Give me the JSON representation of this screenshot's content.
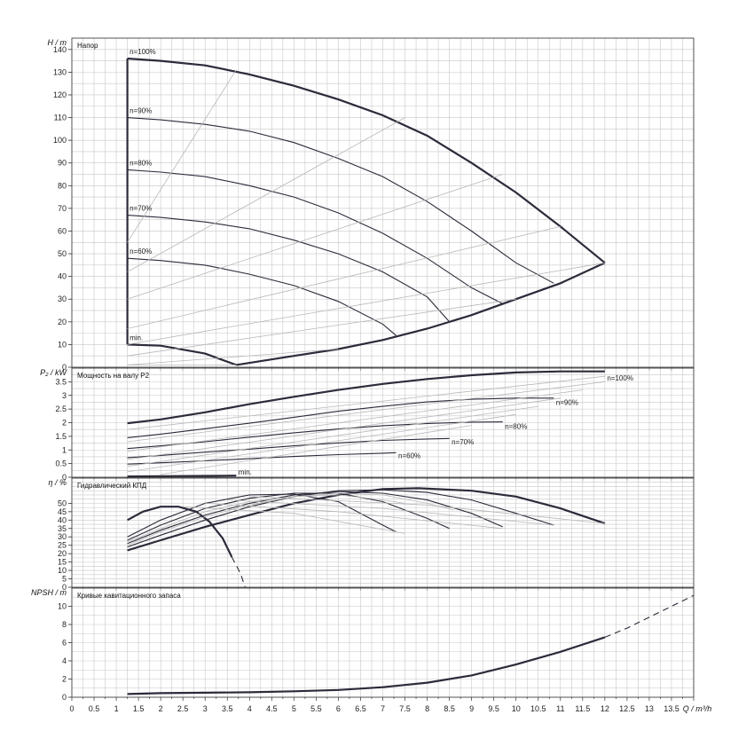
{
  "chart_data": [
    {
      "type": "line",
      "title": "Напор",
      "ylabel": "H / m",
      "xlim": [
        0,
        14
      ],
      "ylim": [
        0,
        145
      ],
      "yticks": [
        0,
        10,
        20,
        30,
        40,
        50,
        60,
        70,
        80,
        90,
        100,
        110,
        120,
        130,
        140
      ],
      "series": [
        {
          "name": "n=100%",
          "style": "main",
          "x": [
            1.25,
            2,
            3,
            4,
            5,
            6,
            7,
            8,
            9,
            10,
            11,
            12
          ],
          "y": [
            136,
            135,
            133,
            129,
            124,
            118,
            111,
            102,
            90,
            77,
            62,
            46
          ]
        },
        {
          "name": "n=90%",
          "style": "mid",
          "x": [
            1.25,
            2,
            3,
            4,
            5,
            6,
            7,
            8,
            9,
            10,
            10.85
          ],
          "y": [
            110,
            109,
            107,
            104,
            99,
            92,
            84,
            73,
            60,
            46,
            37
          ]
        },
        {
          "name": "n=80%",
          "style": "mid",
          "x": [
            1.25,
            2,
            3,
            4,
            5,
            6,
            7,
            8,
            9,
            9.7
          ],
          "y": [
            87,
            86,
            84,
            80,
            75,
            68,
            59,
            48,
            35,
            28
          ]
        },
        {
          "name": "n=70%",
          "style": "mid",
          "x": [
            1.25,
            2,
            3,
            4,
            5,
            6,
            7,
            8,
            8.5
          ],
          "y": [
            67,
            66,
            64,
            61,
            56,
            50,
            42,
            31,
            20
          ]
        },
        {
          "name": "n=60%",
          "style": "mid",
          "x": [
            1.25,
            2,
            3,
            4,
            5,
            6,
            7,
            7.3
          ],
          "y": [
            48,
            47,
            45,
            41,
            36,
            29,
            19,
            14
          ]
        },
        {
          "name": "min.",
          "style": "main",
          "x": [
            1.25,
            2,
            3,
            3.7
          ],
          "y": [
            10,
            9.5,
            6,
            1
          ]
        },
        {
          "name": "",
          "style": "main",
          "x": [
            3.7,
            5,
            6,
            7,
            8,
            9,
            10,
            11,
            12
          ],
          "y": [
            1,
            5,
            8,
            12,
            17,
            23,
            30,
            37,
            46
          ]
        },
        {
          "name": "",
          "style": "main",
          "x": [
            1.25,
            1.25
          ],
          "y": [
            10,
            136
          ]
        },
        {
          "name": "",
          "style": "thin",
          "x": [
            1.25,
            3.7
          ],
          "y": [
            55,
            131
          ]
        },
        {
          "name": "",
          "style": "thin",
          "x": [
            1.25,
            7.5
          ],
          "y": [
            42,
            110
          ]
        },
        {
          "name": "",
          "style": "thin",
          "x": [
            1.25,
            9.7
          ],
          "y": [
            30,
            85
          ]
        },
        {
          "name": "",
          "style": "thin",
          "x": [
            1.25,
            11
          ],
          "y": [
            17,
            62
          ]
        },
        {
          "name": "",
          "style": "thin",
          "x": [
            1.25,
            12
          ],
          "y": [
            10,
            46
          ]
        },
        {
          "name": "",
          "style": "thin",
          "x": [
            1.25,
            10
          ],
          "y": [
            5,
            30
          ]
        },
        {
          "name": "",
          "style": "thin",
          "x": [
            1.25,
            6
          ],
          "y": [
            1,
            8
          ]
        },
        {
          "name": "",
          "style": "thin",
          "x": [
            1.25,
            3.7
          ],
          "y": [
            1,
            1
          ]
        }
      ]
    },
    {
      "type": "line",
      "title": "Мощность на валу P2",
      "ylabel": "P₂ / kW",
      "xlim": [
        0,
        14
      ],
      "ylim": [
        0,
        4
      ],
      "yticks": [
        0,
        0.5,
        1,
        1.5,
        2,
        2.5,
        3,
        3.5
      ],
      "series": [
        {
          "name": "n=100%",
          "style": "main",
          "x": [
            1.25,
            2,
            3,
            4,
            5,
            6,
            7,
            8,
            9,
            10,
            11,
            12
          ],
          "y": [
            1.98,
            2.12,
            2.38,
            2.68,
            2.95,
            3.2,
            3.42,
            3.6,
            3.74,
            3.84,
            3.88,
            3.88
          ]
        },
        {
          "name": "n=90%",
          "style": "mid",
          "x": [
            1.25,
            2,
            3,
            4,
            5,
            6,
            7,
            8,
            9,
            10,
            10.85
          ],
          "y": [
            1.45,
            1.58,
            1.78,
            1.98,
            2.2,
            2.42,
            2.6,
            2.76,
            2.86,
            2.9,
            2.9
          ]
        },
        {
          "name": "n=80%",
          "style": "mid",
          "x": [
            1.25,
            2,
            3,
            4,
            5,
            6,
            7,
            8,
            9,
            9.7
          ],
          "y": [
            1.05,
            1.15,
            1.3,
            1.47,
            1.63,
            1.77,
            1.89,
            1.97,
            2.02,
            2.03
          ]
        },
        {
          "name": "n=70%",
          "style": "mid",
          "x": [
            1.25,
            2,
            3,
            4,
            5,
            6,
            7,
            8,
            8.5
          ],
          "y": [
            0.72,
            0.8,
            0.92,
            1.03,
            1.15,
            1.26,
            1.35,
            1.4,
            1.42
          ]
        },
        {
          "name": "n=60%",
          "style": "mid",
          "x": [
            1.25,
            2,
            3,
            4,
            5,
            6,
            7,
            7.3
          ],
          "y": [
            0.48,
            0.53,
            0.6,
            0.68,
            0.76,
            0.83,
            0.88,
            0.9
          ]
        },
        {
          "name": "min.",
          "style": "main",
          "x": [
            1.25,
            2,
            3,
            3.7
          ],
          "y": [
            0.03,
            0.04,
            0.05,
            0.06
          ]
        },
        {
          "name": "",
          "style": "thin",
          "x": [
            1.25,
            12
          ],
          "y": [
            1.75,
            3.7
          ]
        },
        {
          "name": "",
          "style": "thin",
          "x": [
            1.25,
            12
          ],
          "y": [
            1.3,
            3.5
          ]
        },
        {
          "name": "",
          "style": "thin",
          "x": [
            1.25,
            11.5
          ],
          "y": [
            0.95,
            3.2
          ]
        },
        {
          "name": "",
          "style": "thin",
          "x": [
            1.25,
            11
          ],
          "y": [
            0.65,
            2.9
          ]
        },
        {
          "name": "",
          "style": "thin",
          "x": [
            1.25,
            10.5
          ],
          "y": [
            0.4,
            2.6
          ]
        },
        {
          "name": "",
          "style": "thin",
          "x": [
            1.25,
            10
          ],
          "y": [
            0.2,
            2.3
          ]
        },
        {
          "name": "",
          "style": "thin",
          "x": [
            2,
            9
          ],
          "y": [
            0.1,
            1.9
          ]
        }
      ]
    },
    {
      "type": "line",
      "title": "Гидравлический КПД",
      "ylabel": "η / %",
      "xlim": [
        0,
        14
      ],
      "ylim": [
        0,
        65
      ],
      "yticks": [
        0,
        5,
        10,
        15,
        20,
        25,
        30,
        35,
        40,
        45,
        50
      ],
      "series": [
        {
          "name": "n=100%",
          "style": "main",
          "x": [
            1.25,
            2,
            3,
            4,
            5,
            6,
            7,
            7.8,
            9,
            10,
            11,
            12
          ],
          "y": [
            22,
            28,
            36,
            43,
            50,
            55,
            58.5,
            59,
            57.5,
            54,
            47,
            38
          ]
        },
        {
          "name": "n=90%",
          "style": "mid",
          "x": [
            1.25,
            2,
            3,
            4,
            5,
            6,
            7,
            8,
            9,
            10,
            10.85
          ],
          "y": [
            24,
            31,
            40,
            48,
            54,
            57.5,
            58,
            56.5,
            52,
            44,
            37
          ]
        },
        {
          "name": "n=80%",
          "style": "mid",
          "x": [
            1.25,
            2,
            3,
            4,
            5,
            6,
            7,
            8,
            9,
            9.7
          ],
          "y": [
            26,
            34,
            43,
            50,
            55,
            57,
            56,
            52,
            44,
            36
          ]
        },
        {
          "name": "n=70%",
          "style": "mid",
          "x": [
            1.25,
            2,
            3,
            4,
            5,
            6,
            7,
            8,
            8.5
          ],
          "y": [
            28,
            37,
            47,
            53,
            56,
            56,
            51,
            41,
            35
          ]
        },
        {
          "name": "n=60%",
          "style": "mid",
          "x": [
            1.25,
            2,
            3,
            4,
            5,
            6,
            7,
            7.3
          ],
          "y": [
            30,
            40,
            50,
            55,
            55.5,
            51,
            37,
            33
          ]
        },
        {
          "name": "min.",
          "style": "main",
          "x": [
            1.25,
            1.6,
            2,
            2.4,
            2.8,
            3.1,
            3.4,
            3.6
          ],
          "y": [
            40,
            45,
            48,
            48,
            45,
            39,
            29,
            18
          ]
        },
        {
          "name": "",
          "style": "dash",
          "x": [
            3.6,
            3.8,
            3.9
          ],
          "y": [
            18,
            8,
            0
          ]
        },
        {
          "name": "",
          "style": "thin",
          "x": [
            1.25,
            2,
            3,
            4,
            5,
            6,
            7,
            7.5
          ],
          "y": [
            27,
            35,
            45,
            51,
            54,
            55,
            52,
            50
          ]
        },
        {
          "name": "",
          "style": "thin",
          "x": [
            1.25,
            2,
            3,
            4,
            5,
            6,
            7,
            8,
            8.6
          ],
          "y": [
            25,
            33,
            42,
            49,
            54,
            56,
            55,
            50,
            46
          ]
        },
        {
          "name": "",
          "style": "thin",
          "x": [
            2.5,
            5,
            7.5
          ],
          "y": [
            48,
            44,
            32
          ]
        },
        {
          "name": "",
          "style": "thin",
          "x": [
            3,
            6,
            9.7
          ],
          "y": [
            50,
            45,
            35
          ]
        },
        {
          "name": "",
          "style": "thin",
          "x": [
            3.5,
            7,
            10.85
          ],
          "y": [
            52,
            47,
            37
          ]
        },
        {
          "name": "",
          "style": "thin",
          "x": [
            4,
            8,
            12
          ],
          "y": [
            54,
            49,
            38
          ]
        }
      ]
    },
    {
      "type": "line",
      "title": "Кривые кавитационного запаса",
      "ylabel": "NPSH / m",
      "xlabel": "Q / m³/h",
      "xlim": [
        0,
        14
      ],
      "ylim": [
        0,
        12
      ],
      "xticks": [
        0,
        0.5,
        1,
        1.5,
        2,
        2.5,
        3,
        3.5,
        4,
        4.5,
        5,
        5.5,
        6,
        6.5,
        7,
        7.5,
        8,
        8.5,
        9,
        9.5,
        10,
        10.5,
        11,
        11.5,
        12,
        12.5,
        13,
        13.5
      ],
      "yticks": [
        0,
        2,
        4,
        6,
        8,
        10
      ],
      "series": [
        {
          "name": "",
          "style": "main",
          "x": [
            1.25,
            2,
            3,
            4,
            5,
            6,
            7,
            8,
            9,
            10,
            11,
            12
          ],
          "y": [
            0.35,
            0.45,
            0.5,
            0.55,
            0.65,
            0.8,
            1.1,
            1.6,
            2.4,
            3.6,
            5,
            6.6
          ]
        },
        {
          "name": "",
          "style": "dash",
          "x": [
            12,
            12.5,
            13,
            13.5,
            14
          ],
          "y": [
            6.6,
            7.6,
            8.8,
            10,
            11.2
          ]
        }
      ]
    }
  ],
  "labels": [
    {
      "text": "n=100%",
      "panel": 0,
      "x": 1.3,
      "y": 138
    },
    {
      "text": "n=90%",
      "panel": 0,
      "x": 1.3,
      "y": 112
    },
    {
      "text": "n=80%",
      "panel": 0,
      "x": 1.3,
      "y": 89
    },
    {
      "text": "n=70%",
      "panel": 0,
      "x": 1.3,
      "y": 69
    },
    {
      "text": "n=60%",
      "panel": 0,
      "x": 1.3,
      "y": 50
    },
    {
      "text": "min.",
      "panel": 0,
      "x": 1.3,
      "y": 12
    },
    {
      "text": "n=100%",
      "panel": 1,
      "x": 12.05,
      "y": 3.55
    },
    {
      "text": "n=90%",
      "panel": 1,
      "x": 10.9,
      "y": 2.65
    },
    {
      "text": "n=80%",
      "panel": 1,
      "x": 9.75,
      "y": 1.78
    },
    {
      "text": "n=70%",
      "panel": 1,
      "x": 8.55,
      "y": 1.2
    },
    {
      "text": "n=60%",
      "panel": 1,
      "x": 7.35,
      "y": 0.7
    },
    {
      "text": "min.",
      "panel": 1,
      "x": 3.75,
      "y": 0.1
    }
  ]
}
